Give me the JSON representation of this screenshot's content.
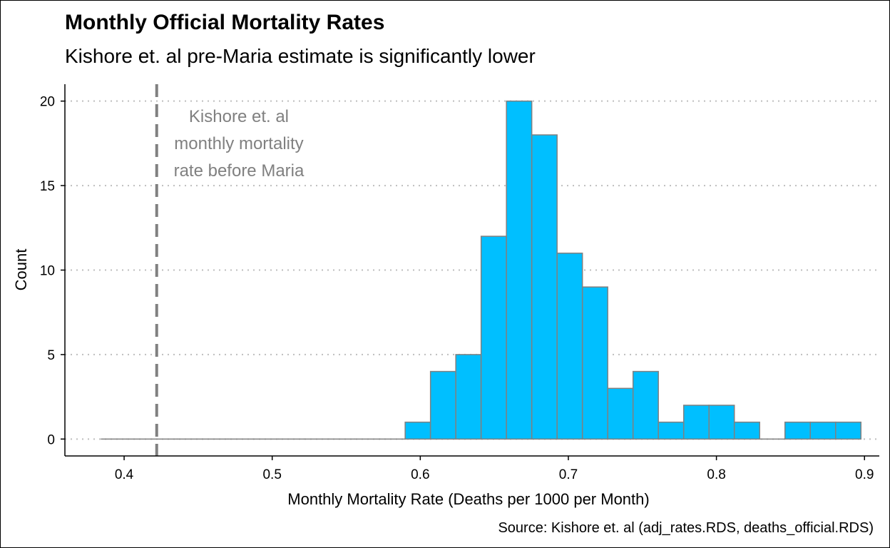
{
  "header": {
    "title": "Monthly Official Mortality Rates",
    "subtitle": "Kishore et. al pre-Maria estimate is significantly lower"
  },
  "footer": {
    "caption": "Source: Kishore et. al (adj_rates.RDS, deaths_official.RDS)"
  },
  "colors": {
    "bar_fill": "#00BFFF",
    "bar_stroke": "#808080",
    "reference_line": "#808080",
    "annotation_text": "#808080",
    "grid": "#BEBEBE"
  },
  "chart_data": {
    "type": "bar",
    "subtype": "histogram",
    "title": "Monthly Official Mortality Rates",
    "subtitle": "Kishore et. al pre-Maria estimate is significantly lower",
    "xlabel": "Monthly Mortality Rate (Deaths per 1000 per Month)",
    "ylabel": "Count",
    "xlim": [
      0.36,
      0.91
    ],
    "ylim": [
      -1,
      21
    ],
    "x_ticks": [
      0.4,
      0.5,
      0.6,
      0.7,
      0.8,
      0.9
    ],
    "x_tick_labels": [
      "0.4",
      "0.5",
      "0.6",
      "0.7",
      "0.8",
      "0.9"
    ],
    "y_ticks": [
      0,
      5,
      10,
      15,
      20
    ],
    "y_tick_labels": [
      "0",
      "5",
      "10",
      "15",
      "20"
    ],
    "grid": "horizontal dotted",
    "bin_start": 0.3846,
    "bin_width": 0.0171,
    "counts": [
      0,
      0,
      0,
      0,
      0,
      0,
      0,
      0,
      0,
      0,
      0,
      0,
      1,
      4,
      5,
      12,
      20,
      18,
      11,
      9,
      3,
      4,
      1,
      2,
      2,
      1,
      0,
      1,
      1,
      1
    ],
    "reference_line": {
      "x": 0.422,
      "style": "dashed"
    },
    "annotation": {
      "x": 0.4775,
      "lines": [
        "Kishore et. al",
        "monthly mortality",
        "rate before Maria"
      ]
    },
    "caption": "Source: Kishore et. al (adj_rates.RDS, deaths_official.RDS)"
  }
}
